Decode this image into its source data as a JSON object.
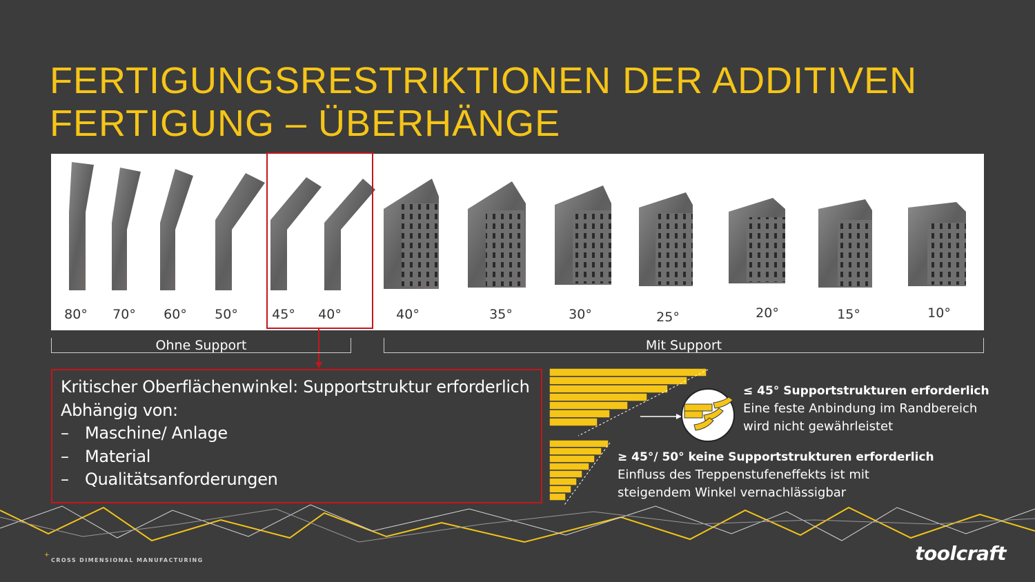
{
  "title": {
    "line1": "FERTIGUNGSRESTRIKTIONEN DER ADDITIVEN",
    "line2": "FERTIGUNG – ÜBERHÄNGE"
  },
  "angles": [
    "80°",
    "70°",
    "60°",
    "50°",
    "45°",
    "40°",
    "40°",
    "35°",
    "30°",
    "25°",
    "20°",
    "15°",
    "10°"
  ],
  "groups": {
    "without_support": "Ohne Support",
    "with_support": "Mit Support"
  },
  "info_box": {
    "line1": "Kritischer Oberflächenwinkel: Supportstruktur erforderlich",
    "line2": "Abhängig von:",
    "items": [
      "Maschine/ Anlage",
      "Material",
      "Qualitätsanforderungen"
    ],
    "dash": "–"
  },
  "support_needed": {
    "heading": "≤ 45° Supportstrukturen erforderlich",
    "line1": "Eine feste Anbindung im Randbereich",
    "line2": "wird nicht gewährleistet"
  },
  "no_support": {
    "heading": "≥ 45°/ 50° keine Supportstrukturen erforderlich",
    "line1": "Einfluss des Treppenstufeneffekts ist mit",
    "line2": "steigendem Winkel vernachlässigbar"
  },
  "footer": {
    "tagline": "CROSS DIMENSIONAL MANUFACTURING",
    "logo": "toolcraft"
  },
  "colors": {
    "accent": "#f5c518",
    "highlight": "#c4161c",
    "background": "#3c3c3c"
  }
}
